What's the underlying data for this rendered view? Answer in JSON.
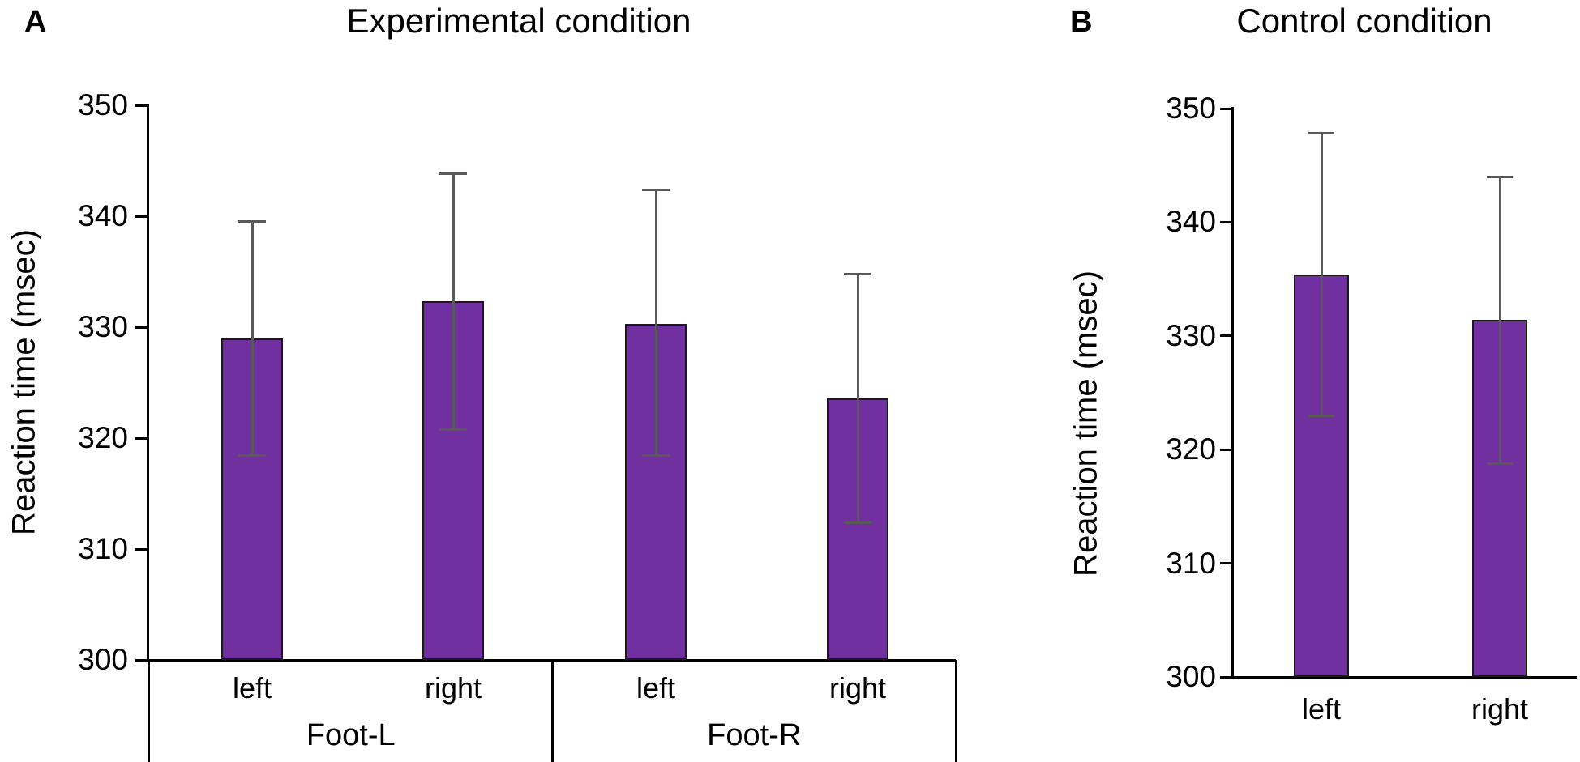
{
  "figure": {
    "background": "#ffffff",
    "panels_count": 2
  },
  "colors": {
    "bar_fill": "#7030A0",
    "bar_border": "#1a1a1a",
    "error_bar": "#595959",
    "axis_line": "#000000",
    "text": "#000000"
  },
  "chart_data": [
    {
      "type": "bar",
      "panel_label": "A",
      "title": "Experimental condition",
      "xlabel": "",
      "ylabel": "Reaction time (msec)",
      "ylim": [
        300,
        350
      ],
      "yticks": [
        300,
        310,
        320,
        330,
        340,
        350
      ],
      "grid": false,
      "legend": null,
      "group_labels": [
        "Foot-L",
        "Foot-R"
      ],
      "categories": [
        "left",
        "right",
        "left",
        "right"
      ],
      "values": [
        329.0,
        332.3,
        330.3,
        323.6
      ],
      "error_high": [
        339.5,
        343.8,
        342.4,
        334.8
      ],
      "error_low": [
        318.4,
        320.8,
        318.4,
        312.4
      ],
      "bar_color": "#7030A0",
      "error_color": "#595959"
    },
    {
      "type": "bar",
      "panel_label": "B",
      "title": "Control condition",
      "xlabel": "",
      "ylabel": "Reaction time (msec)",
      "ylim": [
        300,
        350
      ],
      "yticks": [
        300,
        310,
        320,
        330,
        340,
        350
      ],
      "grid": false,
      "legend": null,
      "group_labels": [],
      "categories": [
        "left",
        "right"
      ],
      "values": [
        335.4,
        331.4
      ],
      "error_high": [
        347.8,
        344.0
      ],
      "error_low": [
        323.0,
        318.8
      ],
      "bar_color": "#7030A0",
      "error_color": "#595959"
    }
  ]
}
